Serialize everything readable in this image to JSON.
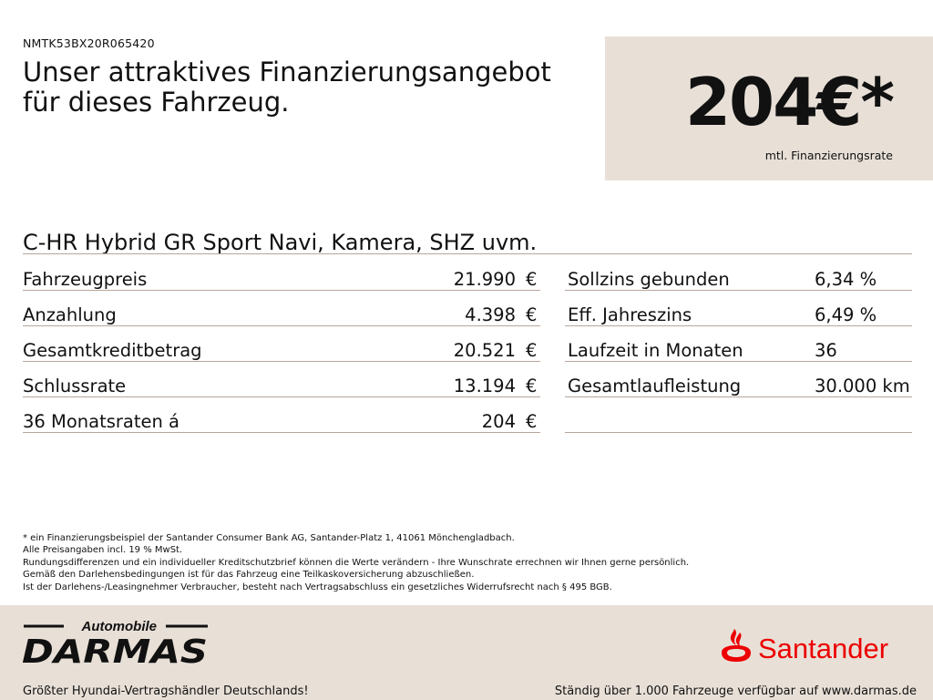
{
  "vin": "NMTK53BX20R065420",
  "headline": {
    "line1": "Unser attraktives Finanzierungsangebot",
    "line2": "für dieses Fahrzeug."
  },
  "price": {
    "value": "204€*",
    "label": "mtl. Finanzierungsrate"
  },
  "model": "C-HR Hybrid GR Sport Navi, Kamera, SHZ uvm.",
  "left_rows": [
    {
      "label": "Fahrzeugpreis",
      "value": "21.990",
      "unit": "€"
    },
    {
      "label": "Anzahlung",
      "value": "4.398",
      "unit": "€"
    },
    {
      "label": "Gesamtkreditbetrag",
      "value": "20.521",
      "unit": "€"
    },
    {
      "label": "Schlussrate",
      "value": "13.194",
      "unit": "€"
    },
    {
      "label": "36 Monatsraten á",
      "value": "204",
      "unit": "€"
    }
  ],
  "right_rows": [
    {
      "label": "Sollzins gebunden",
      "value": "6,34 %"
    },
    {
      "label": "Eff. Jahreszins",
      "value": "6,49 %"
    },
    {
      "label": "Laufzeit in Monaten",
      "value": "36"
    },
    {
      "label": "Gesamtlaufleistung",
      "value": "30.000 km"
    }
  ],
  "footnotes": [
    "* ein Finanzierungsbeispiel der Santander Consumer Bank AG, Santander-Platz 1, 41061 Mönchengladbach.",
    "Alle Preisangaben incl. 19 % MwSt.",
    "Rundungsdifferenzen und ein individueller Kreditschutzbrief können die Werte verändern - Ihre Wunschrate errechnen wir Ihnen gerne persönlich.",
    "Gemäß den Darlehensbedingungen ist für das Fahrzeug eine Teilkaskoversicherung abzuschließen.",
    "Ist der Darlehens-/Leasingnehmer Verbraucher, besteht nach Vertragsabschluss ein gesetzliches Widerrufsrecht nach § 495 BGB."
  ],
  "footer": {
    "dealer_logo": {
      "top": "Automobile",
      "main": "DARMAS"
    },
    "bank_logo": {
      "name": "Santander",
      "color": "#ec0000",
      "icon": "flame-icon"
    },
    "left_text": "Größter Hyundai-Vertragshändler Deutschlands!",
    "right_text": "Ständig über 1.000 Fahrzeuge verfügbar auf www.darmas.de"
  },
  "colors": {
    "beige": "#e8e0d7",
    "rule": "#b9a79b",
    "text": "#111111"
  }
}
